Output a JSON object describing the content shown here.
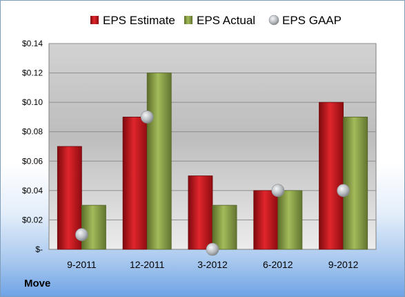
{
  "company": "Move",
  "chart_data": {
    "type": "bar",
    "categories": [
      "9-2011",
      "12-2011",
      "3-2012",
      "6-2012",
      "9-2012"
    ],
    "series": [
      {
        "name": "EPS Estimate",
        "kind": "bar",
        "color": "#c8161d",
        "values": [
          0.07,
          0.09,
          0.05,
          0.04,
          0.1
        ]
      },
      {
        "name": "EPS Actual",
        "kind": "bar",
        "color": "#8ea64a",
        "values": [
          0.03,
          0.12,
          0.03,
          0.04,
          0.09
        ]
      },
      {
        "name": "EPS GAAP",
        "kind": "marker",
        "color": "#b9bdc2",
        "values": [
          0.01,
          0.09,
          0.0,
          0.04,
          0.04
        ]
      }
    ],
    "ylim": [
      0,
      0.14
    ],
    "yticks": [
      0,
      0.02,
      0.04,
      0.06,
      0.08,
      0.1,
      0.12,
      0.14
    ],
    "ytick_labels": [
      "$-",
      "$0.02",
      "$0.04",
      "$0.06",
      "$0.08",
      "$0.10",
      "$0.12",
      "$0.14"
    ],
    "legend_position": "top",
    "grid": true
  }
}
